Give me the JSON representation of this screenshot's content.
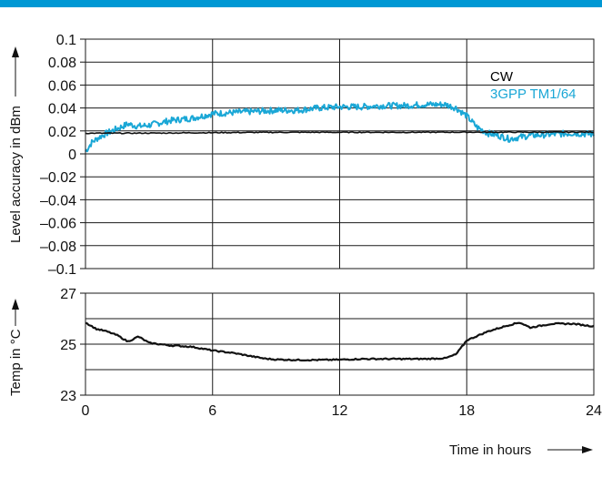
{
  "colors": {
    "accent": "#00A3D9",
    "top_bar": "#0098D4",
    "cw": "#111111",
    "tm": "#1AA7D6",
    "grid": "#1a1a1a"
  },
  "chart_data": [
    {
      "type": "line",
      "ylabel": "Level accuracy in dBm",
      "ylim": [
        -0.1,
        0.1
      ],
      "xlim": [
        0,
        24
      ],
      "y_ticks": [
        "0.1",
        "0.08",
        "0.06",
        "0.04",
        "0.02",
        "0",
        "–0.02",
        "–0.04",
        "–0.06",
        "–0.08",
        "–0.1"
      ],
      "y_tick_values": [
        0.1,
        0.08,
        0.06,
        0.04,
        0.02,
        0,
        -0.02,
        -0.04,
        -0.06,
        -0.08,
        -0.1
      ],
      "x_grid": [
        6,
        12,
        18
      ],
      "grid": true,
      "legend_position": "top-right",
      "series": [
        {
          "name": "CW",
          "color": "#111111",
          "x": [
            0,
            2,
            4,
            6,
            8,
            10,
            12,
            14,
            16,
            18,
            20,
            22,
            24
          ],
          "y": [
            0.018,
            0.018,
            0.0182,
            0.0185,
            0.0187,
            0.0188,
            0.0188,
            0.0188,
            0.0188,
            0.0189,
            0.0189,
            0.0189,
            0.019
          ]
        },
        {
          "name": "3GPP TM1/64",
          "color": "#1AA7D6",
          "x": [
            0,
            0.3,
            0.6,
            1,
            1.5,
            2,
            2.5,
            3,
            4,
            5,
            6,
            7,
            8,
            9,
            10,
            11,
            12,
            13,
            14,
            15,
            16,
            17,
            17.5,
            18,
            18.5,
            19,
            19.5,
            20,
            21,
            22,
            23,
            24
          ],
          "y": [
            0.002,
            0.01,
            0.014,
            0.018,
            0.022,
            0.026,
            0.024,
            0.025,
            0.029,
            0.031,
            0.035,
            0.036,
            0.037,
            0.038,
            0.038,
            0.04,
            0.041,
            0.041,
            0.042,
            0.042,
            0.043,
            0.043,
            0.04,
            0.033,
            0.023,
            0.018,
            0.016,
            0.013,
            0.016,
            0.017,
            0.018,
            0.017
          ]
        }
      ]
    },
    {
      "type": "line",
      "xlabel": "Time in hours",
      "ylabel": "Temp in °C",
      "ylim": [
        23,
        27
      ],
      "xlim": [
        0,
        24
      ],
      "y_ticks": [
        "27",
        "25",
        "23"
      ],
      "y_tick_values": [
        27,
        25,
        23
      ],
      "y_grid": [
        26,
        25,
        24
      ],
      "x_ticks": [
        "0",
        "6",
        "12",
        "18",
        "24"
      ],
      "x_tick_values": [
        0,
        6,
        12,
        18,
        24
      ],
      "x_grid": [
        6,
        12,
        18
      ],
      "grid": true,
      "series": [
        {
          "color": "#111111",
          "x": [
            0,
            0.5,
            1,
            1.5,
            2,
            2.5,
            3,
            4,
            5,
            6,
            7,
            8,
            8.5,
            9,
            10,
            11,
            12,
            13,
            14,
            15,
            16,
            17,
            17.5,
            18,
            19,
            20,
            20.5,
            21,
            22,
            23,
            24
          ],
          "y": [
            25.85,
            25.6,
            25.5,
            25.35,
            25.1,
            25.3,
            25.05,
            24.95,
            24.9,
            24.75,
            24.65,
            24.5,
            24.43,
            24.4,
            24.38,
            24.38,
            24.39,
            24.42,
            24.42,
            24.42,
            24.42,
            24.45,
            24.6,
            25.15,
            25.5,
            25.75,
            25.85,
            25.65,
            25.8,
            25.8,
            25.7
          ]
        }
      ]
    }
  ]
}
